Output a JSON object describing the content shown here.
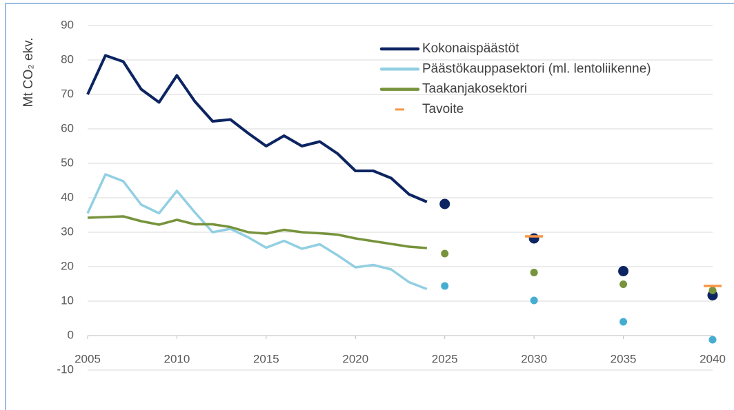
{
  "chart_data": {
    "type": "line",
    "y_label": "Mt CO₂ ekv.",
    "x": [
      2005,
      2006,
      2007,
      2008,
      2009,
      2010,
      2011,
      2012,
      2013,
      2014,
      2015,
      2016,
      2017,
      2018,
      2019,
      2020,
      2021,
      2022,
      2023,
      2024
    ],
    "projection_x": [
      2025,
      2030,
      2035,
      2040
    ],
    "series": [
      {
        "name": "Kokonaispäästöt",
        "color": "#0c2461",
        "marker_color": "#0c2461",
        "values": [
          70,
          81.3,
          79.5,
          71.5,
          67.7,
          75.5,
          68,
          62.2,
          62.7,
          58.7,
          55,
          58,
          55,
          56.3,
          52.8,
          47.8,
          47.8,
          45.7,
          41,
          38.8
        ],
        "projection_values": [
          38.2,
          28.2,
          18.7,
          11.7
        ]
      },
      {
        "name": "Päästökauppasektori (ml. lentoliikenne)",
        "color": "#92cfe2",
        "marker_color": "#45aed0",
        "values": [
          35.5,
          46.8,
          44.8,
          38,
          35.5,
          42,
          35.8,
          30,
          31,
          28.5,
          25.5,
          27.5,
          25.2,
          26.5,
          23.3,
          19.8,
          20.5,
          19.2,
          15.5,
          13.5
        ],
        "projection_values": [
          14.4,
          10.2,
          4,
          -1.2
        ]
      },
      {
        "name": "Taakanjakosektori",
        "color": "#77933c",
        "marker_color": "#77933c",
        "values": [
          34.2,
          34.4,
          34.6,
          33.2,
          32.2,
          33.6,
          32.3,
          32.3,
          31.5,
          30,
          29.6,
          30.7,
          30,
          29.7,
          29.3,
          28.2,
          27.4,
          26.6,
          25.8,
          25.4
        ],
        "projection_values": [
          23.8,
          18.3,
          14.9,
          13.1
        ]
      }
    ],
    "target": {
      "name": "Tavoite",
      "color": "#f79646",
      "x": [
        2030,
        2040
      ],
      "values": [
        28.8,
        14.4
      ]
    },
    "xlim": [
      2005,
      2040
    ],
    "xticks": [
      2005,
      2010,
      2015,
      2020,
      2025,
      2030,
      2035,
      2040
    ],
    "ylim": [
      -10,
      90
    ],
    "yticks": [
      -10,
      0,
      10,
      20,
      30,
      40,
      50,
      60,
      70,
      80,
      90
    ],
    "grid": true
  }
}
